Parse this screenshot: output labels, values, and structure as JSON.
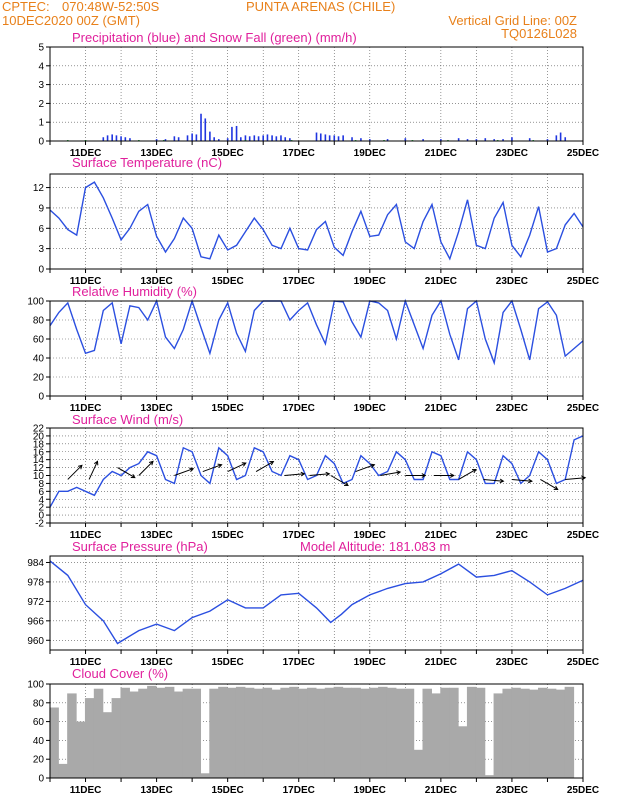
{
  "header": {
    "line1_left": "CPTEC:",
    "line1_coord": "070:48W-52:50S",
    "line1_place": "PUNTA ARENAS (CHILE)",
    "line2_left": "10DEC2020 00Z (GMT)",
    "line2_right": "Vertical Grid Line: 00Z",
    "line3_right": "TQ0126L028"
  },
  "x_dates": [
    "11DEC",
    "13DEC",
    "15DEC",
    "17DEC",
    "19DEC",
    "21DEC",
    "23DEC",
    "25DEC"
  ],
  "colors": {
    "header": "#e8801a",
    "title": "#e0209c",
    "line": "#2b4fe0",
    "precip": "#1f35e0",
    "snow": "#1fae3a",
    "cloud": "#a9a9a9"
  },
  "chart_data": [
    {
      "id": "precip",
      "type": "bar",
      "title": "Precipitation (blue) and Snow Fall (green) (mm/h)",
      "ylim": [
        0,
        5
      ],
      "yticks": [
        0,
        1,
        2,
        3,
        4,
        5
      ],
      "x_unit": "days since 10DEC2020 00Z",
      "series": [
        {
          "name": "Precipitation",
          "color": "#1f35e0",
          "x": [
            1.5,
            1.62,
            1.75,
            1.87,
            2.0,
            2.12,
            2.25,
            3.0,
            3.25,
            3.5,
            3.62,
            3.87,
            4.0,
            4.12,
            4.25,
            4.37,
            4.5,
            4.62,
            4.75,
            5.0,
            5.12,
            5.25,
            5.37,
            5.5,
            5.62,
            5.75,
            5.87,
            6.0,
            6.12,
            6.25,
            6.37,
            6.5,
            6.62,
            6.75,
            7.5,
            7.62,
            7.75,
            7.87,
            8.0,
            8.12,
            8.25,
            8.5,
            8.75,
            9.0,
            9.5,
            10.0,
            10.5,
            11.0,
            11.5,
            11.75,
            12.0,
            12.25,
            12.5,
            12.75,
            13.0,
            13.5,
            14.0,
            14.25,
            14.37,
            14.5
          ],
          "values": [
            0.2,
            0.3,
            0.35,
            0.3,
            0.25,
            0.2,
            0.15,
            0.1,
            0.1,
            0.25,
            0.2,
            0.3,
            0.4,
            0.35,
            1.45,
            1.2,
            0.5,
            0.2,
            0.1,
            0.15,
            0.75,
            0.8,
            0.2,
            0.3,
            0.25,
            0.3,
            0.25,
            0.3,
            0.35,
            0.3,
            0.25,
            0.3,
            0.2,
            0.15,
            0.45,
            0.4,
            0.35,
            0.3,
            0.3,
            0.25,
            0.3,
            0.2,
            0.15,
            0.1,
            0.1,
            0.15,
            0.1,
            0.1,
            0.15,
            0.1,
            0.1,
            0.15,
            0.1,
            0.1,
            0.2,
            0.15,
            0.1,
            0.3,
            0.45,
            0.2
          ]
        },
        {
          "name": "Snow Fall",
          "color": "#1fae3a",
          "x": [
            0.5,
            1.0,
            2.5,
            3.2,
            5.5,
            6.8,
            8.6,
            9.4,
            10.2,
            11.2,
            12.6,
            13.6
          ],
          "values": [
            0.05,
            0.05,
            0.05,
            0.05,
            0.05,
            0.05,
            0.05,
            0.05,
            0.05,
            0.05,
            0.05,
            0.05
          ]
        }
      ]
    },
    {
      "id": "temp",
      "type": "line",
      "title": "Surface Temperature (nC)",
      "ylim": [
        0,
        14
      ],
      "yticks": [
        0,
        3,
        6,
        9,
        12
      ],
      "x_unit": "days since 10DEC2020 00Z",
      "x": [
        0,
        0.25,
        0.5,
        0.75,
        1.0,
        1.25,
        1.5,
        1.75,
        2.0,
        2.25,
        2.5,
        2.75,
        3.0,
        3.25,
        3.5,
        3.75,
        4.0,
        4.25,
        4.5,
        4.75,
        5.0,
        5.25,
        5.5,
        5.75,
        6.0,
        6.25,
        6.5,
        6.75,
        7.0,
        7.25,
        7.5,
        7.75,
        8.0,
        8.25,
        8.5,
        8.75,
        9.0,
        9.25,
        9.5,
        9.75,
        10.0,
        10.25,
        10.5,
        10.75,
        11.0,
        11.25,
        11.5,
        11.75,
        12.0,
        12.25,
        12.5,
        12.75,
        13.0,
        13.25,
        13.5,
        13.75,
        14.0,
        14.25,
        14.5,
        14.75,
        15.0
      ],
      "values": [
        8.7,
        7.5,
        5.8,
        5.0,
        12.0,
        12.8,
        10.5,
        7.5,
        4.3,
        6.0,
        8.5,
        9.5,
        4.8,
        2.5,
        4.5,
        7.5,
        6.0,
        1.8,
        1.5,
        5.0,
        2.8,
        3.5,
        5.5,
        7.5,
        5.8,
        3.5,
        3.0,
        6.0,
        3.0,
        2.8,
        5.8,
        7.0,
        3.2,
        2.0,
        5.5,
        8.5,
        4.8,
        5.0,
        8.0,
        9.5,
        4.0,
        3.0,
        7.0,
        9.5,
        4.0,
        1.5,
        5.5,
        10.2,
        3.5,
        3.0,
        7.5,
        9.8,
        3.5,
        1.8,
        5.0,
        9.2,
        2.5,
        3.0,
        6.5,
        8.2,
        6.2
      ]
    },
    {
      "id": "rh",
      "type": "line",
      "title": "Relative Humidity (%)",
      "ylim": [
        0,
        100
      ],
      "yticks": [
        0,
        20,
        40,
        60,
        80,
        100
      ],
      "x_unit": "days since 10DEC2020 00Z",
      "x": [
        0,
        0.25,
        0.5,
        0.75,
        1.0,
        1.25,
        1.5,
        1.75,
        2.0,
        2.25,
        2.5,
        2.75,
        3.0,
        3.25,
        3.5,
        3.75,
        4.0,
        4.25,
        4.5,
        4.75,
        5.0,
        5.25,
        5.5,
        5.75,
        6.0,
        6.25,
        6.5,
        6.75,
        7.0,
        7.25,
        7.5,
        7.75,
        8.0,
        8.25,
        8.5,
        8.75,
        9.0,
        9.25,
        9.5,
        9.75,
        10.0,
        10.25,
        10.5,
        10.75,
        11.0,
        11.25,
        11.5,
        11.75,
        12.0,
        12.25,
        12.5,
        12.75,
        13.0,
        13.25,
        13.5,
        13.75,
        14.0,
        14.25,
        14.5,
        14.75,
        15.0
      ],
      "values": [
        74,
        88,
        98,
        70,
        45,
        48,
        90,
        98,
        55,
        95,
        93,
        80,
        100,
        62,
        50,
        70,
        100,
        72,
        45,
        80,
        98,
        66,
        47,
        90,
        100,
        100,
        100,
        80,
        90,
        98,
        75,
        55,
        100,
        99,
        78,
        62,
        100,
        98,
        90,
        60,
        100,
        75,
        50,
        85,
        100,
        65,
        38,
        92,
        100,
        60,
        35,
        88,
        100,
        70,
        38,
        92,
        99,
        85,
        42,
        50,
        58
      ]
    },
    {
      "id": "wind",
      "type": "line",
      "title": "Surface Wind (m/s)",
      "ylim": [
        -2,
        22
      ],
      "yticks": [
        -2,
        0,
        2,
        4,
        6,
        8,
        10,
        12,
        14,
        16,
        18,
        20,
        22
      ],
      "x_unit": "days since 10DEC2020 00Z",
      "x": [
        0,
        0.25,
        0.5,
        0.75,
        1.0,
        1.25,
        1.5,
        1.75,
        2.0,
        2.25,
        2.5,
        2.75,
        3.0,
        3.25,
        3.5,
        3.75,
        4.0,
        4.25,
        4.5,
        4.75,
        5.0,
        5.25,
        5.5,
        5.75,
        6.0,
        6.25,
        6.5,
        6.75,
        7.0,
        7.25,
        7.5,
        7.75,
        8.0,
        8.25,
        8.5,
        8.75,
        9.0,
        9.25,
        9.5,
        9.75,
        10.0,
        10.25,
        10.5,
        10.75,
        11.0,
        11.25,
        11.5,
        11.75,
        12.0,
        12.25,
        12.5,
        12.75,
        13.0,
        13.25,
        13.5,
        13.75,
        14.0,
        14.25,
        14.5,
        14.75,
        15.0
      ],
      "values": [
        2,
        6,
        6,
        7,
        6,
        5,
        9,
        11,
        10,
        12,
        13,
        16,
        15,
        9,
        8,
        17,
        16,
        10,
        8,
        17,
        15,
        9,
        10,
        17,
        16,
        11,
        10,
        15,
        14,
        9,
        10,
        15,
        13,
        8,
        9,
        15,
        13,
        10,
        11,
        16,
        14,
        9,
        9,
        16,
        15,
        9,
        9,
        16,
        14,
        8,
        8,
        15,
        13,
        8,
        10,
        16,
        14,
        8,
        9,
        19,
        20
      ],
      "arrows": [
        {
          "day": 0.5,
          "speed": 9,
          "dir_deg": 225
        },
        {
          "day": 1.1,
          "speed": 9,
          "dir_deg": 205
        },
        {
          "day": 1.9,
          "speed": 12,
          "dir_deg": 300
        },
        {
          "day": 2.5,
          "speed": 10,
          "dir_deg": 225
        },
        {
          "day": 3.5,
          "speed": 10,
          "dir_deg": 250
        },
        {
          "day": 4.3,
          "speed": 11,
          "dir_deg": 250
        },
        {
          "day": 5.0,
          "speed": 11,
          "dir_deg": 245
        },
        {
          "day": 5.8,
          "speed": 11,
          "dir_deg": 240
        },
        {
          "day": 6.6,
          "speed": 10,
          "dir_deg": 265
        },
        {
          "day": 7.3,
          "speed": 10,
          "dir_deg": 265
        },
        {
          "day": 7.9,
          "speed": 10,
          "dir_deg": 300
        },
        {
          "day": 8.6,
          "speed": 11,
          "dir_deg": 250
        },
        {
          "day": 9.3,
          "speed": 10,
          "dir_deg": 260
        },
        {
          "day": 10.0,
          "speed": 10,
          "dir_deg": 270
        },
        {
          "day": 10.8,
          "speed": 10,
          "dir_deg": 270
        },
        {
          "day": 11.5,
          "speed": 9,
          "dir_deg": 240
        },
        {
          "day": 12.2,
          "speed": 9,
          "dir_deg": 275
        },
        {
          "day": 13.0,
          "speed": 9,
          "dir_deg": 275
        },
        {
          "day": 13.8,
          "speed": 9,
          "dir_deg": 300
        },
        {
          "day": 14.5,
          "speed": 9,
          "dir_deg": 265
        }
      ]
    },
    {
      "id": "pressure",
      "type": "line",
      "title": "Surface Pressure (hPa)",
      "title2": "Model Altitude: 181.083 m",
      "ylim": [
        957,
        986
      ],
      "yticks": [
        960,
        966,
        972,
        978,
        984
      ],
      "x_unit": "days since 10DEC2020 00Z",
      "x": [
        0,
        0.5,
        1.0,
        1.5,
        1.9,
        2.2,
        2.5,
        3.0,
        3.5,
        4.0,
        4.5,
        5.0,
        5.5,
        6.0,
        6.5,
        7.0,
        7.5,
        7.9,
        8.2,
        8.5,
        9.0,
        9.5,
        10.0,
        10.5,
        11.0,
        11.5,
        12.0,
        12.5,
        13.0,
        13.5,
        14.0,
        14.5,
        15.0
      ],
      "values": [
        984.5,
        980,
        971,
        966,
        959,
        961,
        963,
        965,
        963,
        967,
        969,
        972.5,
        970,
        970,
        974,
        974.5,
        970,
        965.5,
        968,
        971,
        974,
        976,
        977.5,
        978,
        980.5,
        983.5,
        979.5,
        980,
        981.5,
        978,
        974,
        976,
        978.5
      ]
    },
    {
      "id": "cloud",
      "type": "bar",
      "title": "Cloud Cover (%)",
      "ylim": [
        0,
        100
      ],
      "yticks": [
        0,
        20,
        40,
        60,
        80,
        100
      ],
      "x_unit": "days since 10DEC2020 00Z",
      "x": [
        0.25,
        0.5,
        0.75,
        1.0,
        1.25,
        1.5,
        1.75,
        2.0,
        2.25,
        2.5,
        2.75,
        3.0,
        3.25,
        3.5,
        3.75,
        4.0,
        4.25,
        4.5,
        4.75,
        5.0,
        5.25,
        5.5,
        5.75,
        6.0,
        6.25,
        6.5,
        6.75,
        7.0,
        7.25,
        7.5,
        7.75,
        8.0,
        8.25,
        8.5,
        8.75,
        9.0,
        9.25,
        9.5,
        9.75,
        10.0,
        10.25,
        10.5,
        10.75,
        11.0,
        11.25,
        11.5,
        11.75,
        12.0,
        12.25,
        12.5,
        12.75,
        13.0,
        13.25,
        13.5,
        13.75,
        14.0,
        14.25,
        14.5,
        14.75
      ],
      "values": [
        75,
        15,
        90,
        60,
        85,
        95,
        70,
        85,
        96,
        92,
        95,
        98,
        96,
        97,
        92,
        95,
        95,
        5,
        95,
        97,
        96,
        97,
        96,
        95,
        96,
        94,
        96,
        97,
        95,
        96,
        95,
        96,
        97,
        96,
        96,
        95,
        96,
        97,
        96,
        95,
        95,
        30,
        95,
        90,
        96,
        96,
        55,
        97,
        96,
        3,
        90,
        95,
        96,
        95,
        94,
        96,
        95,
        94,
        97
      ]
    }
  ]
}
